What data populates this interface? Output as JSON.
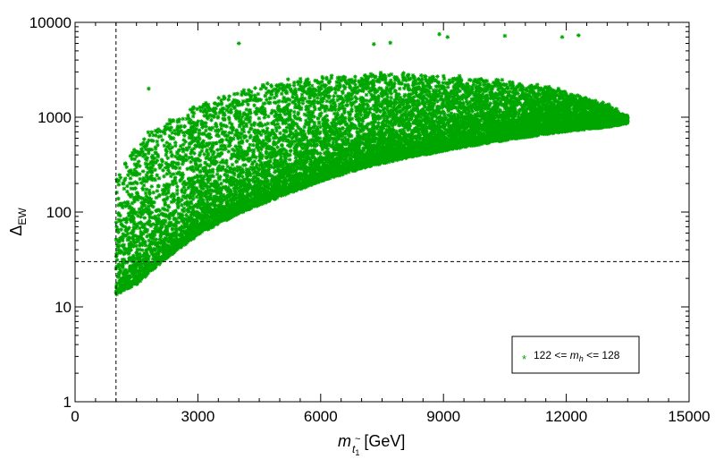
{
  "chart_data": {
    "type": "scatter",
    "title": "",
    "xlabel": {
      "symbol": "m",
      "sub_accent": "~",
      "sub": "t",
      "sub_index": "1",
      "unit": "[GeV]"
    },
    "ylabel": {
      "symbol": "Δ",
      "sub": "EW"
    },
    "xlim": [
      0,
      15000
    ],
    "ylim": [
      1,
      10000
    ],
    "yscale": "log",
    "grid": false,
    "marker": "star",
    "color": "#00a600",
    "xticks": [
      0,
      3000,
      6000,
      9000,
      12000,
      15000
    ],
    "xtick_labels": [
      "0",
      "3000",
      "6000",
      "9000",
      "12000",
      "15000"
    ],
    "yticks": [
      1,
      10,
      100,
      1000,
      10000
    ],
    "ytick_labels": [
      "1",
      "10",
      "100",
      "1000",
      "10000"
    ],
    "reference_lines": [
      {
        "orientation": "vertical",
        "x": 1000,
        "style": "dashed"
      },
      {
        "orientation": "horizontal",
        "y": 30,
        "style": "dashed"
      }
    ],
    "legend": {
      "placement": "bottom-right",
      "marker": "*",
      "text_left": "122 <= ",
      "text_var": "m",
      "text_sub": "h",
      "text_right": " <= 128"
    },
    "series": [
      {
        "name": "122 <= m_h <= 128",
        "band_description": "dense band of points; x from 1000 to 13500 GeV",
        "envelope": {
          "x": [
            1000,
            1500,
            2000,
            3000,
            4000,
            5000,
            6000,
            7000,
            8000,
            9000,
            10000,
            11000,
            12000,
            13000,
            13500
          ],
          "y_lower": [
            14,
            18,
            28,
            60,
            100,
            150,
            220,
            300,
            380,
            460,
            550,
            640,
            740,
            820,
            900
          ],
          "y_upper": [
            300,
            700,
            1100,
            1800,
            2400,
            3000,
            3300,
            3500,
            3400,
            3200,
            2900,
            2500,
            2000,
            1400,
            1000
          ]
        },
        "n_points": 16000,
        "outliers": [
          {
            "x": 4000,
            "y": 6000
          },
          {
            "x": 7300,
            "y": 5900
          },
          {
            "x": 7700,
            "y": 6100
          },
          {
            "x": 8900,
            "y": 7500
          },
          {
            "x": 9100,
            "y": 7000
          },
          {
            "x": 10500,
            "y": 7200
          },
          {
            "x": 11900,
            "y": 7000
          },
          {
            "x": 12300,
            "y": 7300
          },
          {
            "x": 1800,
            "y": 2000
          }
        ]
      }
    ]
  }
}
